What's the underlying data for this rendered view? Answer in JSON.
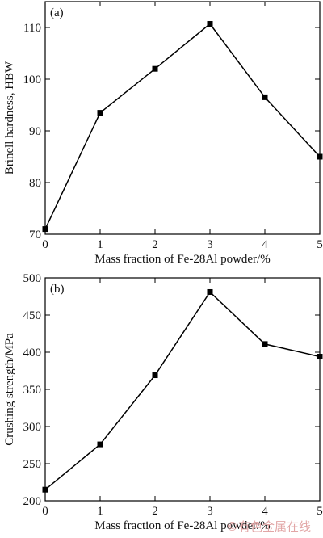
{
  "chart_data": [
    {
      "type": "line",
      "panel_tag": "(a)",
      "x": [
        0,
        1,
        2,
        3,
        4,
        5
      ],
      "xticks": [
        "0",
        "1",
        "2",
        "3",
        "4",
        "5"
      ],
      "xlim": [
        0,
        5
      ],
      "series": [
        {
          "values": [
            71,
            93.5,
            102,
            110.7,
            96.5,
            85
          ]
        }
      ],
      "ylim": [
        70,
        115
      ],
      "yticks": [
        70,
        80,
        90,
        100,
        110
      ],
      "xlabel": "Mass fraction of Fe-28Al powder/%",
      "ylabel": "Brinell hardness, HBW",
      "grid": false,
      "marker": "square"
    },
    {
      "type": "line",
      "panel_tag": "(b)",
      "x": [
        0,
        1,
        2,
        3,
        4,
        5
      ],
      "xticks": [
        "0",
        "1",
        "2",
        "3",
        "4",
        "5"
      ],
      "xlim": [
        0,
        5
      ],
      "series": [
        {
          "values": [
            215,
            276,
            369,
            481,
            411,
            394
          ]
        }
      ],
      "ylim": [
        200,
        500
      ],
      "yticks": [
        200,
        250,
        300,
        350,
        400,
        450,
        500
      ],
      "xlabel": "Mass fraction of Fe-28Al powder/%",
      "ylabel": "Crushing strength/MPa",
      "grid": false,
      "marker": "square"
    }
  ],
  "watermark": "©有色金属在线",
  "colors": {
    "line": "#000000",
    "watermark": "#e2a6a6"
  }
}
